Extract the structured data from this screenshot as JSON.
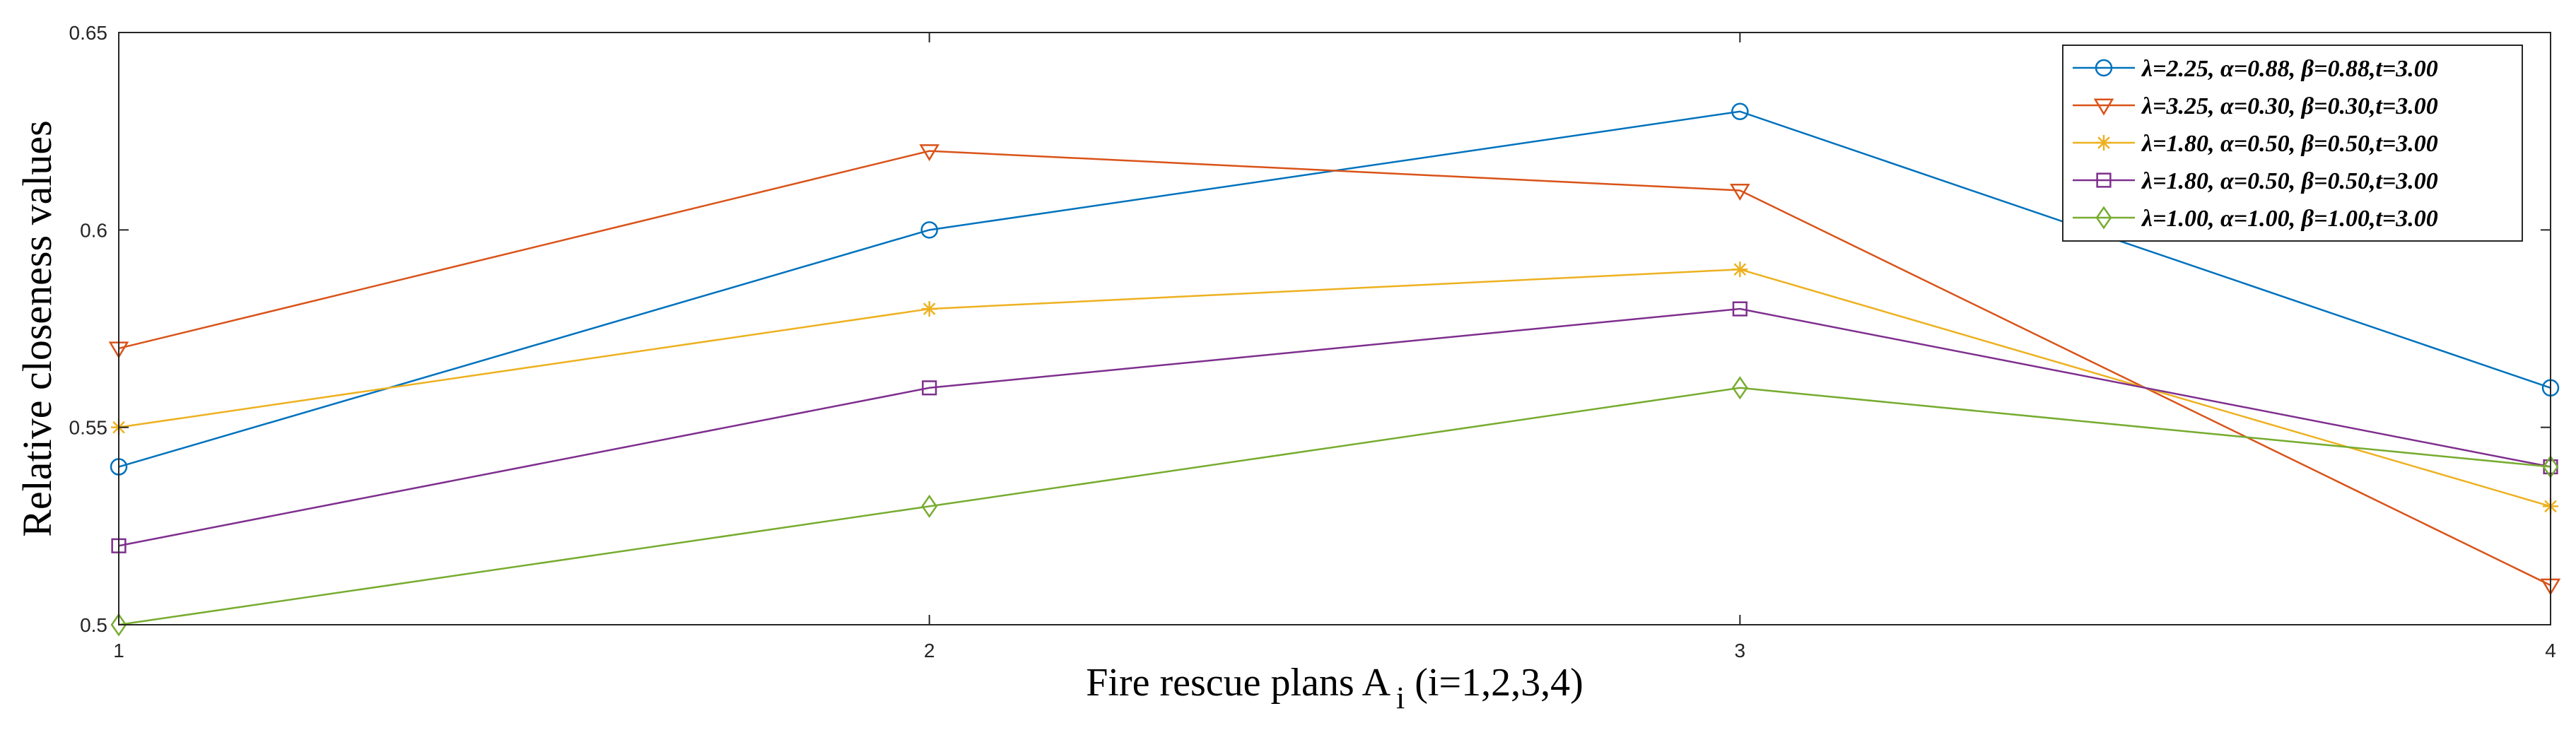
{
  "chart_data": {
    "type": "line",
    "title": "",
    "xlabel_main": "Fire rescue plans A",
    "xlabel_sub": "i",
    "xlabel_tail": " (i=1,2,3,4)",
    "ylabel": "Relative closeness values",
    "x": [
      1,
      2,
      3,
      4
    ],
    "xticks": [
      "1",
      "2",
      "3",
      "4"
    ],
    "xlim": [
      1,
      4
    ],
    "ylim": [
      0.5,
      0.65
    ],
    "yticks": [
      0.5,
      0.55,
      0.6,
      0.65
    ],
    "ytick_labels": [
      "0.5",
      "0.55",
      "0.6",
      "0.65"
    ],
    "grid": false,
    "legend_position": "top-right",
    "series": [
      {
        "name": "λ=2.25, α=0.88, β=0.88,t=3.00",
        "values": [
          0.54,
          0.6,
          0.63,
          0.56
        ],
        "color": "#0072BD",
        "marker": "circle"
      },
      {
        "name": "λ=3.25, α=0.30, β=0.30,t=3.00",
        "values": [
          0.57,
          0.62,
          0.61,
          0.51
        ],
        "color": "#D95319",
        "marker": "triangle-down"
      },
      {
        "name": "λ=1.80, α=0.50, β=0.50,t=3.00",
        "values": [
          0.55,
          0.58,
          0.59,
          0.53
        ],
        "color": "#EDB120",
        "marker": "asterisk"
      },
      {
        "name": "λ=1.80, α=0.50, β=0.50,t=3.00",
        "values": [
          0.52,
          0.56,
          0.58,
          0.54
        ],
        "color": "#7E2F8E",
        "marker": "square"
      },
      {
        "name": "λ=1.00, α=1.00, β=1.00,t=3.00",
        "values": [
          0.5,
          0.53,
          0.56,
          0.54
        ],
        "color": "#77AC30",
        "marker": "diamond"
      }
    ]
  }
}
